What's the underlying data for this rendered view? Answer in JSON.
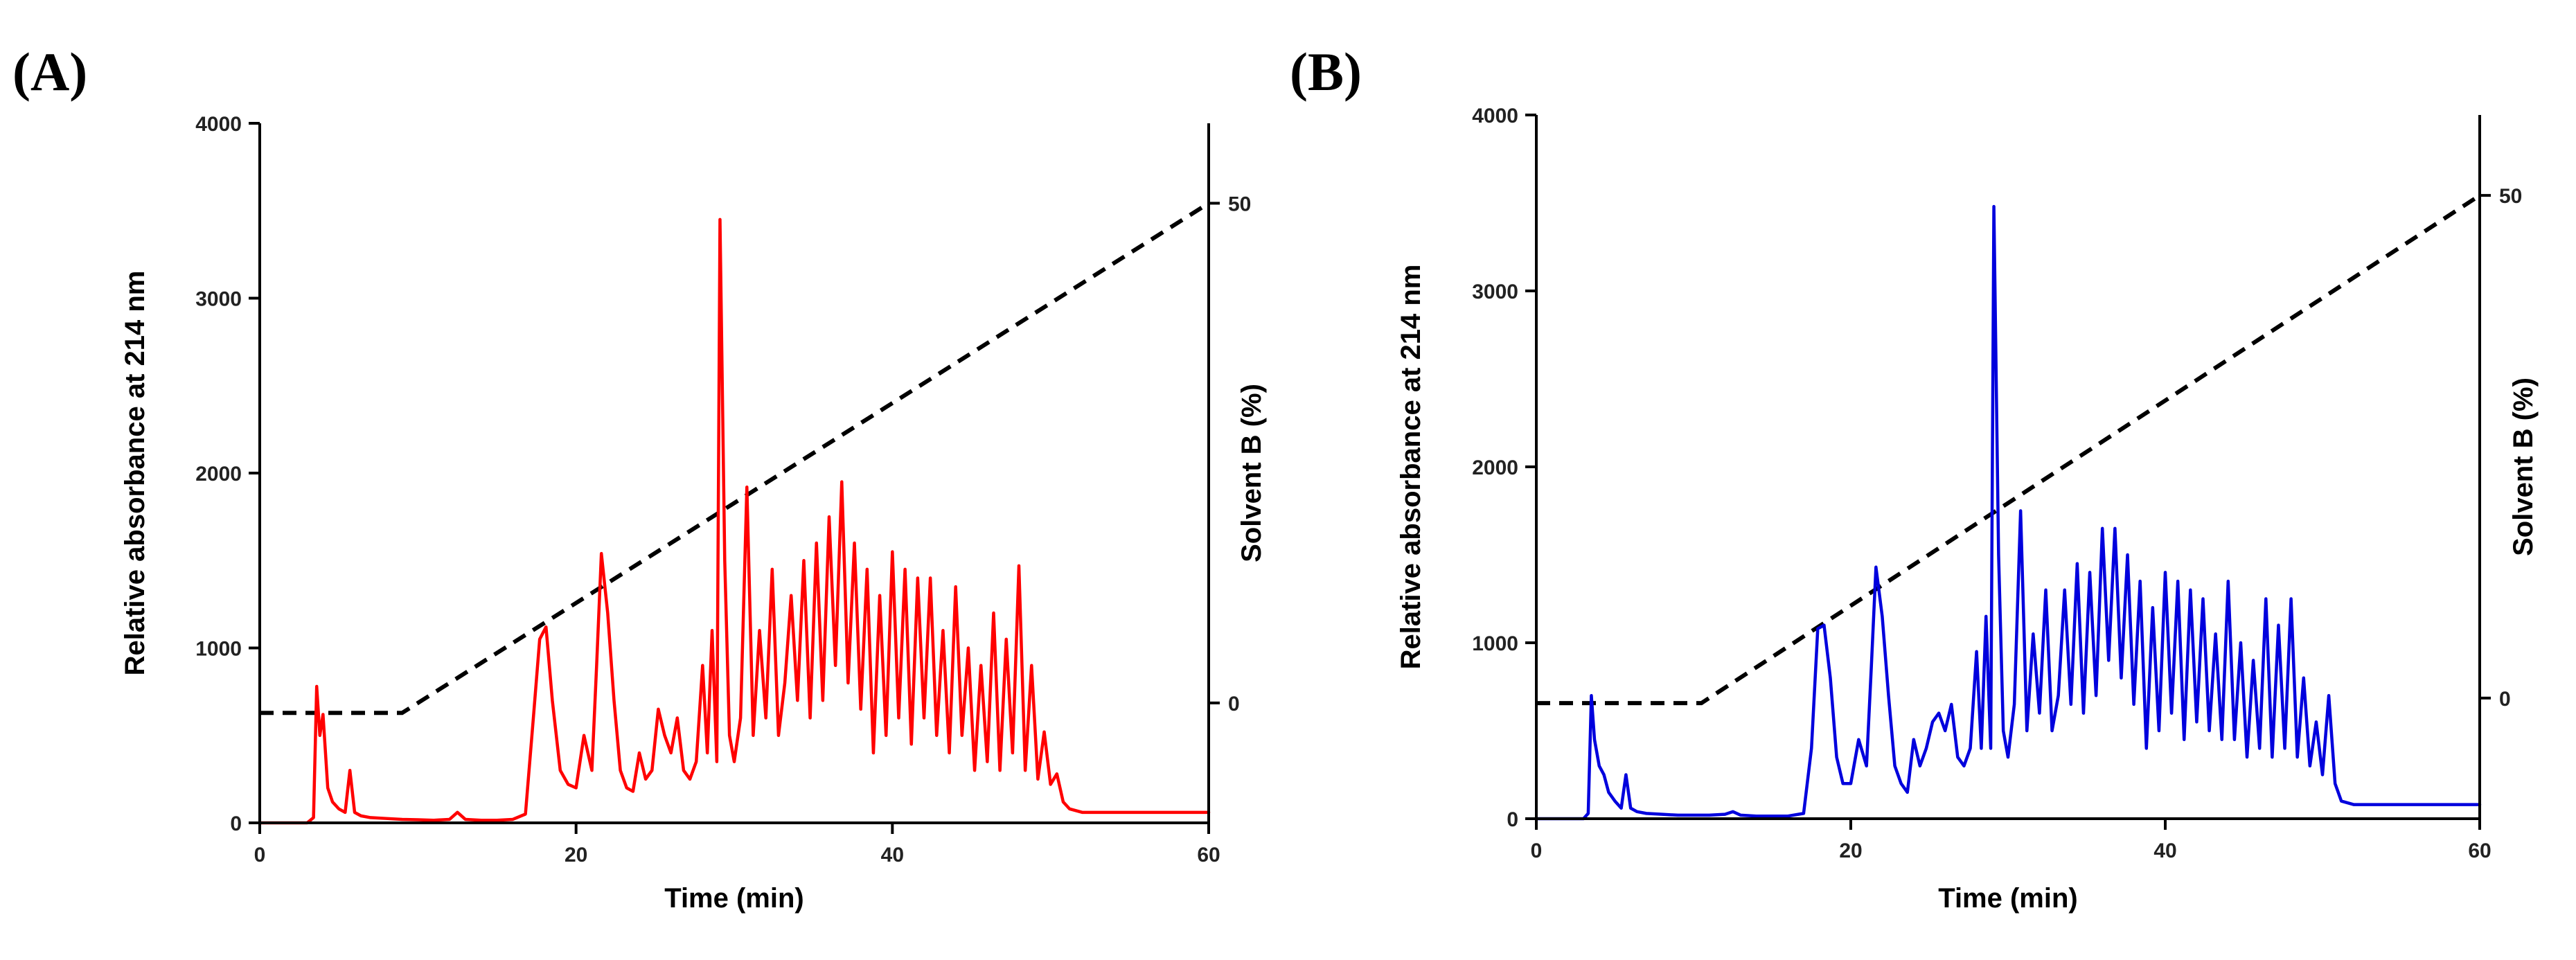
{
  "chart_data": [
    {
      "panel_label": "(A)",
      "type": "line",
      "color": "#ff0000",
      "xlabel": "Time (min)",
      "ylabel": "Relative absorbance at 214 nm",
      "y2label": "Solvent B (%)",
      "xlim": [
        0,
        60
      ],
      "ylim": [
        0,
        4000
      ],
      "y2lim": [
        -12,
        58
      ],
      "x_ticks": [
        "0",
        "20",
        "40",
        "60"
      ],
      "y_ticks": [
        "0",
        "1000",
        "2000",
        "3000",
        "4000"
      ],
      "y2_ticks": [
        "0",
        "50"
      ],
      "gradient": {
        "name": "Solvent B (%)",
        "x": [
          0,
          9,
          60
        ],
        "y": [
          -1,
          -1,
          50
        ]
      },
      "series": [
        {
          "name": "Relative absorbance at 214 nm",
          "x": [
            0,
            3.0,
            3.4,
            3.6,
            3.8,
            4.0,
            4.3,
            4.6,
            5.0,
            5.4,
            5.7,
            6.0,
            6.4,
            7.0,
            8.0,
            9.0,
            10.0,
            11.0,
            12.0,
            12.5,
            13.0,
            14.0,
            15.0,
            16.0,
            16.8,
            17.3,
            17.7,
            18.1,
            18.5,
            19.0,
            19.5,
            20.0,
            20.5,
            21.0,
            21.3,
            21.6,
            22.0,
            22.4,
            22.8,
            23.2,
            23.6,
            24.0,
            24.4,
            24.8,
            25.2,
            25.6,
            26.0,
            26.4,
            26.8,
            27.2,
            27.6,
            28.0,
            28.3,
            28.6,
            28.9,
            29.1,
            29.4,
            29.7,
            30.0,
            30.4,
            30.8,
            31.2,
            31.6,
            32.0,
            32.4,
            32.8,
            33.2,
            33.6,
            34.0,
            34.4,
            34.8,
            35.2,
            35.6,
            36.0,
            36.4,
            36.8,
            37.2,
            37.6,
            38.0,
            38.4,
            38.8,
            39.2,
            39.6,
            40.0,
            40.4,
            40.8,
            41.2,
            41.6,
            42.0,
            42.4,
            42.8,
            43.2,
            43.6,
            44.0,
            44.4,
            44.8,
            45.2,
            45.6,
            46.0,
            46.4,
            46.8,
            47.2,
            47.6,
            48.0,
            48.4,
            48.8,
            49.2,
            49.6,
            50.0,
            50.4,
            50.8,
            51.2,
            52.0,
            53.0,
            55.0,
            60.0
          ],
          "y": [
            0,
            0,
            30,
            780,
            500,
            620,
            200,
            120,
            80,
            60,
            300,
            60,
            40,
            30,
            25,
            20,
            18,
            15,
            20,
            60,
            20,
            15,
            15,
            20,
            50,
            600,
            1050,
            1120,
            700,
            300,
            220,
            200,
            500,
            300,
            900,
            1540,
            1200,
            700,
            300,
            200,
            180,
            400,
            250,
            300,
            650,
            500,
            400,
            600,
            300,
            250,
            350,
            900,
            400,
            1100,
            350,
            3450,
            1500,
            500,
            350,
            600,
            1920,
            500,
            1100,
            600,
            1450,
            500,
            800,
            1300,
            700,
            1500,
            600,
            1600,
            700,
            1750,
            900,
            1950,
            800,
            1600,
            650,
            1450,
            400,
            1300,
            500,
            1550,
            600,
            1450,
            450,
            1400,
            600,
            1400,
            500,
            1100,
            400,
            1350,
            500,
            1000,
            300,
            900,
            350,
            1200,
            300,
            1050,
            400,
            1470,
            300,
            900,
            250,
            520,
            220,
            280,
            120,
            80,
            60,
            60,
            60,
            60
          ]
        }
      ]
    },
    {
      "panel_label": "(B)",
      "type": "line",
      "color": "#0000dd",
      "xlabel": "Time (min)",
      "ylabel": "Relative absorbance at 214 nm",
      "y2label": "Solvent B (%)",
      "xlim": [
        0,
        60
      ],
      "ylim": [
        0,
        4000
      ],
      "y2lim": [
        -12,
        58
      ],
      "x_ticks": [
        "0",
        "20",
        "40",
        "60"
      ],
      "y_ticks": [
        "0",
        "1000",
        "2000",
        "3000",
        "4000"
      ],
      "y2_ticks": [
        "0",
        "50"
      ],
      "gradient": {
        "name": "Solvent B (%)",
        "x": [
          0,
          10.5,
          60
        ],
        "y": [
          -0.5,
          -0.5,
          50
        ]
      },
      "series": [
        {
          "name": "Relative absorbance at 214 nm",
          "x": [
            0,
            3.0,
            3.3,
            3.5,
            3.7,
            4.0,
            4.3,
            4.6,
            5.0,
            5.4,
            5.7,
            6.0,
            6.4,
            7.0,
            8.0,
            9.0,
            10.0,
            11.0,
            12.0,
            12.5,
            13.0,
            14.0,
            15.0,
            16.0,
            17.0,
            17.5,
            17.9,
            18.3,
            18.7,
            19.1,
            19.5,
            20.0,
            20.5,
            21.0,
            21.3,
            21.6,
            22.0,
            22.4,
            22.8,
            23.2,
            23.6,
            24.0,
            24.4,
            24.8,
            25.2,
            25.6,
            26.0,
            26.4,
            26.8,
            27.2,
            27.6,
            28.0,
            28.3,
            28.6,
            28.9,
            29.1,
            29.4,
            29.7,
            30.0,
            30.4,
            30.8,
            31.2,
            31.6,
            32.0,
            32.4,
            32.8,
            33.2,
            33.6,
            34.0,
            34.4,
            34.8,
            35.2,
            35.6,
            36.0,
            36.4,
            36.8,
            37.2,
            37.6,
            38.0,
            38.4,
            38.8,
            39.2,
            39.6,
            40.0,
            40.4,
            40.8,
            41.2,
            41.6,
            42.0,
            42.4,
            42.8,
            43.2,
            43.6,
            44.0,
            44.4,
            44.8,
            45.2,
            45.6,
            46.0,
            46.4,
            46.8,
            47.2,
            47.6,
            48.0,
            48.4,
            48.8,
            49.2,
            49.6,
            50.0,
            50.4,
            50.8,
            51.2,
            52.0,
            53.0,
            55.0,
            60.0
          ],
          "y": [
            0,
            0,
            30,
            700,
            450,
            300,
            250,
            150,
            100,
            60,
            250,
            60,
            40,
            30,
            25,
            20,
            20,
            20,
            25,
            40,
            20,
            15,
            15,
            15,
            30,
            400,
            1080,
            1100,
            800,
            350,
            200,
            200,
            450,
            300,
            850,
            1430,
            1150,
            700,
            300,
            200,
            150,
            450,
            300,
            400,
            550,
            600,
            500,
            650,
            350,
            300,
            400,
            950,
            400,
            1150,
            400,
            3480,
            1500,
            500,
            350,
            650,
            1750,
            500,
            1050,
            600,
            1300,
            500,
            700,
            1300,
            650,
            1450,
            600,
            1400,
            700,
            1650,
            900,
            1650,
            800,
            1500,
            650,
            1350,
            400,
            1200,
            500,
            1400,
            600,
            1350,
            450,
            1300,
            550,
            1250,
            500,
            1050,
            450,
            1350,
            450,
            1000,
            350,
            900,
            400,
            1250,
            350,
            1100,
            400,
            1250,
            350,
            800,
            300,
            550,
            250,
            700,
            200,
            100,
            80,
            80,
            80,
            80
          ]
        }
      ]
    }
  ]
}
